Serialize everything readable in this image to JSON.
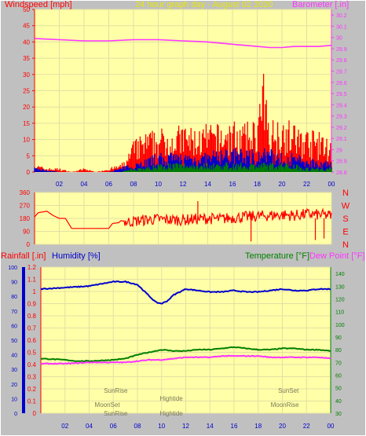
{
  "colors": {
    "background": "#c0c0c0",
    "plot_bg": "#ffffa8",
    "grid": "#e3dfa3",
    "red": "#ff0000",
    "blue": "#0000cc",
    "green": "#008000",
    "magenta": "#ff33ff",
    "yellow": "#e8e800",
    "grey_text": "#7a7a5a"
  },
  "chart_data": [
    {
      "type": "line",
      "title": "24 hour graph day - August 02 2020",
      "ylabel": "Windspeed [mph]",
      "y2label": "Barometer [.in]",
      "x_ticks": [
        "02",
        "04",
        "06",
        "08",
        "10",
        "12",
        "14",
        "16",
        "18",
        "20",
        "22",
        "00"
      ],
      "ylim": [
        0,
        50
      ],
      "y_ticks": [
        "0",
        "5",
        "10",
        "15",
        "20",
        "25",
        "30",
        "35",
        "40",
        "45",
        "50"
      ],
      "y2lim": [
        28.8,
        30.25
      ],
      "y2_ticks": [
        "28.8",
        "28.9",
        "29",
        "29.1",
        "29.2",
        "29.3",
        "29.4",
        "29.5",
        "29.6",
        "29.7",
        "29.8",
        "29.9",
        "30",
        "30.1",
        "30.2"
      ],
      "series": [
        {
          "name": "Barometer",
          "axis": "y2",
          "x": [
            0,
            2,
            4,
            6,
            8,
            10,
            12,
            14,
            16,
            18,
            19,
            20,
            21,
            22,
            23,
            24
          ],
          "y": [
            29.99,
            29.98,
            29.97,
            29.97,
            29.98,
            29.98,
            29.97,
            29.96,
            29.94,
            29.92,
            29.91,
            29.91,
            29.92,
            29.92,
            29.92,
            29.93
          ]
        },
        {
          "name": "Wind Gust",
          "x": [
            0,
            1,
            2,
            3,
            4,
            5,
            6,
            7,
            7.5,
            8,
            9,
            10,
            11,
            12,
            13,
            14,
            15,
            16,
            17,
            18,
            18.5,
            19,
            20,
            21,
            22,
            23,
            24
          ],
          "y": [
            2,
            1,
            1,
            0,
            1,
            0,
            1,
            2,
            4,
            8,
            10,
            11,
            11,
            12,
            11,
            12,
            12,
            13,
            12,
            14,
            25,
            13,
            15,
            12,
            11,
            10,
            8
          ]
        },
        {
          "name": "Wind Average",
          "x": [
            0,
            2,
            4,
            6,
            7,
            8,
            9,
            10,
            11,
            12,
            13,
            14,
            15,
            16,
            17,
            18,
            19,
            20,
            21,
            22,
            23,
            24
          ],
          "y": [
            1,
            0,
            0,
            0,
            1,
            2,
            3,
            4,
            4,
            4,
            4,
            4,
            5,
            5,
            5,
            5,
            5,
            4,
            4,
            3,
            3,
            2
          ]
        },
        {
          "name": "Wind Low",
          "x": [
            0,
            2,
            4,
            6,
            7,
            8,
            9,
            10,
            11,
            12,
            13,
            14,
            15,
            16,
            17,
            18,
            19,
            20,
            21,
            22,
            23,
            24
          ],
          "y": [
            0,
            0,
            0,
            0,
            0,
            1,
            1,
            2,
            2,
            2,
            2,
            2,
            2,
            2,
            2,
            2,
            2,
            2,
            2,
            1,
            1,
            1
          ]
        }
      ]
    },
    {
      "type": "line",
      "y_ticks": [
        "360",
        "270",
        "180",
        "90",
        "0"
      ],
      "ylim": [
        0,
        360
      ],
      "compass": [
        "N",
        "W",
        "S",
        "E",
        "N"
      ],
      "x": [
        0,
        0.3,
        1,
        1.5,
        2,
        2.5,
        3,
        4,
        5,
        6,
        6.3,
        6.8,
        7,
        7.5,
        8,
        9,
        10,
        11,
        12,
        13,
        14,
        15,
        16,
        17,
        18,
        19,
        20,
        21,
        22,
        23,
        24
      ],
      "y": [
        190,
        220,
        230,
        200,
        180,
        180,
        110,
        110,
        110,
        110,
        145,
        150,
        165,
        155,
        160,
        170,
        175,
        170,
        170,
        175,
        180,
        175,
        185,
        190,
        195,
        200,
        205,
        200,
        210,
        205,
        200
      ]
    },
    {
      "type": "line",
      "ylabel_left": "Rainfall [.in]",
      "ylabel_humidity": "Humidity [%]",
      "ylabel_right": "Temperature [°F]",
      "ylabel_dew": "Dew Point [°F]",
      "x_ticks": [
        "02",
        "04",
        "06",
        "08",
        "10",
        "12",
        "14",
        "16",
        "18",
        "20",
        "22",
        "00"
      ],
      "rain_ticks": [
        "0",
        "0.1",
        "0.2",
        "0.3",
        "0.4",
        "0.5",
        "0.6",
        "0.7",
        "0.8",
        "0.9",
        "1",
        "1.1",
        "1.2"
      ],
      "rain_lim": [
        0,
        1.2
      ],
      "hum_ticks": [
        "0",
        "10",
        "20",
        "30",
        "40",
        "50",
        "60",
        "70",
        "80",
        "90",
        "100"
      ],
      "hum_lim": [
        0,
        100
      ],
      "temp_ticks": [
        "30",
        "40",
        "50",
        "60",
        "70",
        "80",
        "90",
        "100",
        "110",
        "120",
        "130",
        "140"
      ],
      "temp_lim": [
        30,
        145
      ],
      "series": [
        {
          "name": "Humidity",
          "axis": "hum",
          "x": [
            0,
            2,
            4,
            6,
            7,
            8,
            9,
            9.5,
            10,
            10.5,
            11,
            12,
            13,
            14,
            15,
            16,
            17,
            18,
            19,
            20,
            21,
            22,
            23,
            24
          ],
          "y": [
            85,
            86,
            87,
            90,
            90,
            88,
            80,
            76,
            75,
            77,
            81,
            85,
            84,
            83,
            83,
            84,
            83,
            83,
            84,
            85,
            84,
            84,
            85,
            85
          ]
        },
        {
          "name": "Temperature",
          "axis": "temp",
          "x": [
            0,
            2,
            3,
            4,
            6,
            7,
            8,
            9,
            10,
            11,
            12,
            13,
            14,
            15,
            16,
            17,
            18,
            19,
            20,
            21,
            22,
            23,
            24
          ],
          "y": [
            73,
            72,
            71,
            71,
            72,
            73,
            76,
            78,
            80,
            79,
            79,
            80,
            80,
            81,
            82,
            81,
            80,
            80,
            81,
            81,
            80,
            80,
            79
          ]
        },
        {
          "name": "Dew Point",
          "axis": "temp",
          "x": [
            0,
            2,
            4,
            6,
            7,
            8,
            9,
            10,
            11,
            12,
            13,
            14,
            15,
            16,
            17,
            18,
            19,
            20,
            21,
            22,
            23,
            24
          ],
          "y": [
            69,
            69,
            70,
            70,
            70,
            71,
            72,
            72,
            73,
            74,
            74,
            74,
            75,
            75,
            75,
            75,
            74,
            74,
            74,
            74,
            74,
            73
          ]
        }
      ],
      "annotations": [
        {
          "label": "SunRise",
          "x": 6.2,
          "y_temp": 46
        },
        {
          "label": "MoonSet",
          "x": 5.5,
          "y_temp": 35
        },
        {
          "label": "Hightide",
          "x": 10.8,
          "y_temp": 40
        },
        {
          "label": "SunSet",
          "x": 20.5,
          "y_temp": 46
        },
        {
          "label": "MoonRise",
          "x": 20.2,
          "y_temp": 35
        },
        {
          "label": "SunRise",
          "x": 6.2,
          "y_temp": 28
        },
        {
          "label": "Hightide",
          "x": 10.8,
          "y_temp": 28
        }
      ]
    }
  ]
}
